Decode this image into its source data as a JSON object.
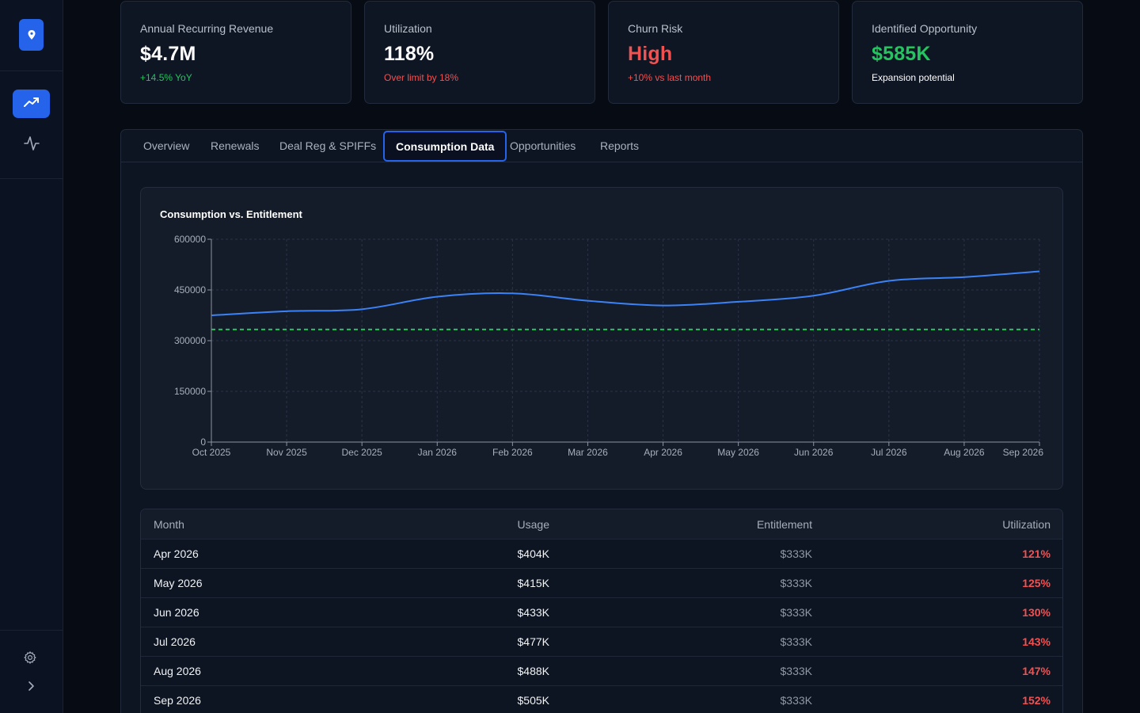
{
  "sidebar": {
    "logo_icon": "map-pin-icon",
    "items": [
      {
        "icon": "trending-up-icon",
        "active": true
      },
      {
        "icon": "activity-icon",
        "active": false
      }
    ],
    "footer": [
      {
        "icon": "gear-icon"
      },
      {
        "icon": "chevron-right-icon"
      }
    ]
  },
  "kpis": [
    {
      "label": "Annual Recurring Revenue",
      "value": "$4.7M",
      "sub": "+14.5% YoY",
      "value_color": "#ffffff",
      "sub_color": "#22c55e"
    },
    {
      "label": "Utilization",
      "value": "118%",
      "sub": "Over limit by 18%",
      "value_color": "#ffffff",
      "sub_color": "#f05252"
    },
    {
      "label": "Churn Risk",
      "value": "High",
      "sub": "+10% vs last month",
      "value_color": "#f05252",
      "sub_color": "#f05252"
    },
    {
      "label": "Identified Opportunity",
      "value": "$585K",
      "sub": "Expansion potential",
      "value_color": "#22c55e",
      "sub_color": "#ffffff"
    }
  ],
  "tabs": [
    {
      "label": "Overview",
      "active": false
    },
    {
      "label": "Renewals",
      "active": false
    },
    {
      "label": "Deal Reg & SPIFFs",
      "active": false
    },
    {
      "label": "Consumption Data",
      "active": true
    },
    {
      "label": "Opportunities",
      "active": false
    },
    {
      "label": "Reports",
      "active": false
    }
  ],
  "chart_data": {
    "type": "line",
    "title": "Consumption vs. Entitlement",
    "x": [
      "Oct 2025",
      "Nov 2025",
      "Dec 2025",
      "Jan 2026",
      "Feb 2026",
      "Mar 2026",
      "Apr 2026",
      "May 2026",
      "Jun 2026",
      "Jul 2026",
      "Aug 2026",
      "Sep 2026"
    ],
    "series": [
      {
        "name": "",
        "values": [
          375000,
          387000,
          393000,
          430000,
          440000,
          418000,
          404000,
          415000,
          433000,
          477000,
          488000,
          505000
        ],
        "color": "#3b82f6",
        "style": "solid"
      },
      {
        "name": "",
        "values": [
          333000,
          333000,
          333000,
          333000,
          333000,
          333000,
          333000,
          333000,
          333000,
          333000,
          333000,
          333000
        ],
        "color": "#22c55e",
        "style": "dashed"
      }
    ],
    "yticks": [
      "0",
      "150000",
      "300000",
      "450000",
      "600000"
    ],
    "ylim": [
      0,
      600000
    ],
    "grid": true,
    "xlabel": "",
    "ylabel": ""
  },
  "table": {
    "headers": {
      "month": "Month",
      "usage": "Usage",
      "entitlement": "Entitlement",
      "utilization": "Utilization"
    },
    "rows": [
      {
        "month": "Apr 2026",
        "usage": "$404K",
        "entitlement": "$333K",
        "utilization": "121%"
      },
      {
        "month": "May 2026",
        "usage": "$415K",
        "entitlement": "$333K",
        "utilization": "125%"
      },
      {
        "month": "Jun 2026",
        "usage": "$433K",
        "entitlement": "$333K",
        "utilization": "130%"
      },
      {
        "month": "Jul 2026",
        "usage": "$477K",
        "entitlement": "$333K",
        "utilization": "143%"
      },
      {
        "month": "Aug 2026",
        "usage": "$488K",
        "entitlement": "$333K",
        "utilization": "147%"
      },
      {
        "month": "Sep 2026",
        "usage": "$505K",
        "entitlement": "$333K",
        "utilization": "152%"
      }
    ]
  }
}
